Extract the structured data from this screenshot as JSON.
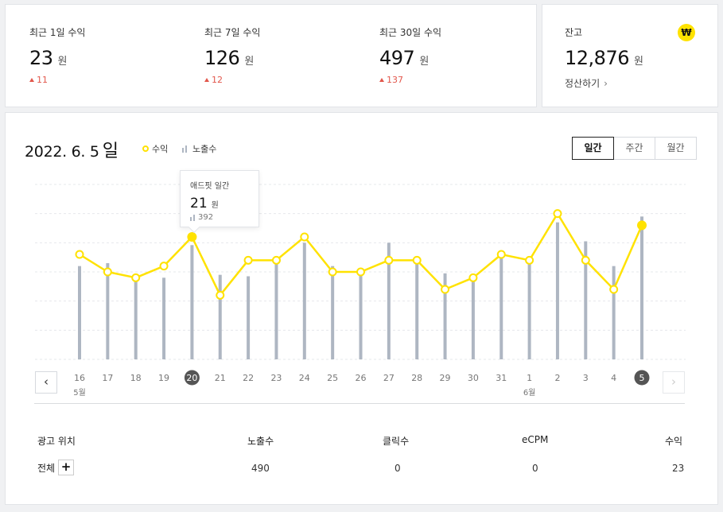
{
  "stats": [
    {
      "label": "최근 1일 수익",
      "value": "23",
      "unit": "원",
      "delta": "11"
    },
    {
      "label": "최근 7일 수익",
      "value": "126",
      "unit": "원",
      "delta": "12"
    },
    {
      "label": "최근 30일 수익",
      "value": "497",
      "unit": "원",
      "delta": "137"
    }
  ],
  "balance": {
    "label": "잔고",
    "value": "12,876",
    "unit": "원",
    "settle_label": "정산하기",
    "badge": "₩"
  },
  "chart_header": {
    "date": "2022. 6. 5",
    "day_suffix": "일",
    "legend_revenue": "수익",
    "legend_impressions": "노출수"
  },
  "period_tabs": [
    {
      "label": "일간",
      "active": true
    },
    {
      "label": "주간",
      "active": false
    },
    {
      "label": "월간",
      "active": false
    }
  ],
  "tooltip": {
    "title": "애드핏 일간",
    "value": "21",
    "unit": "원",
    "impressions": "392"
  },
  "chart_data": {
    "type": "bar+line",
    "categories": [
      "16",
      "17",
      "18",
      "19",
      "20",
      "21",
      "22",
      "23",
      "24",
      "25",
      "26",
      "27",
      "28",
      "29",
      "30",
      "31",
      "1",
      "2",
      "3",
      "4",
      "5"
    ],
    "month_labels": [
      {
        "index": 0,
        "label": "5월"
      },
      {
        "index": 16,
        "label": "6월"
      }
    ],
    "highlighted_categories": [
      "20",
      "5"
    ],
    "series": [
      {
        "name": "수익",
        "type": "line",
        "color": "#ffe200",
        "values": [
          18,
          15,
          14,
          16,
          21,
          11,
          17,
          17,
          21,
          15,
          15,
          17,
          17,
          12,
          14,
          18,
          17,
          25,
          17,
          12,
          23
        ]
      },
      {
        "name": "노출수",
        "type": "bar",
        "color": "#aeb6c2",
        "values": [
          320,
          330,
          280,
          280,
          392,
          290,
          285,
          330,
          400,
          320,
          300,
          400,
          340,
          295,
          270,
          350,
          340,
          470,
          405,
          320,
          490
        ]
      }
    ],
    "revenue_ylim": [
      0,
      30
    ],
    "impressions_ylim": [
      0,
      600
    ],
    "grid": true
  },
  "table": {
    "headers": [
      "광고 위치",
      "노출수",
      "클릭수",
      "eCPM",
      "수익"
    ],
    "rows": [
      {
        "label": "전체",
        "values": [
          "490",
          "0",
          "0",
          "23"
        ]
      }
    ]
  }
}
